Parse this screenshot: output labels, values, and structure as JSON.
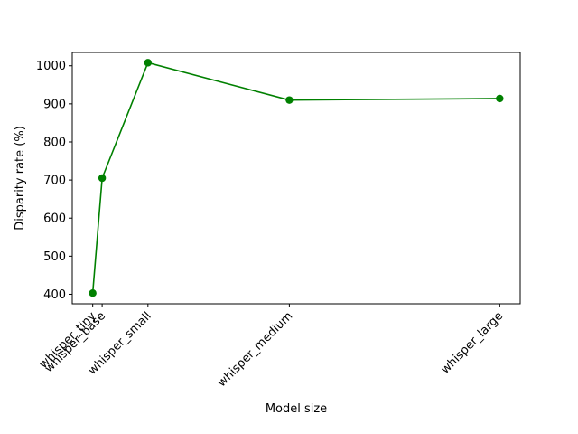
{
  "chart_data": {
    "type": "line",
    "title": "",
    "xlabel": "Model size",
    "ylabel": "Disparity rate (%)",
    "x_positions": [
      39,
      74,
      244,
      769,
      1550
    ],
    "categories": [
      "whisper_tiny",
      "whisper_base",
      "whisper_small",
      "whisper_medium",
      "whisper_large"
    ],
    "series": [
      {
        "values": [
          403,
          705,
          1008,
          910,
          914
        ],
        "color": "#008000",
        "marker": "circle"
      }
    ],
    "xlim": [
      -37,
      1626
    ],
    "ylim": [
      375,
      1035
    ],
    "yticks": [
      400,
      500,
      600,
      700,
      800,
      900,
      1000
    ],
    "grid": false,
    "legend": "none"
  }
}
